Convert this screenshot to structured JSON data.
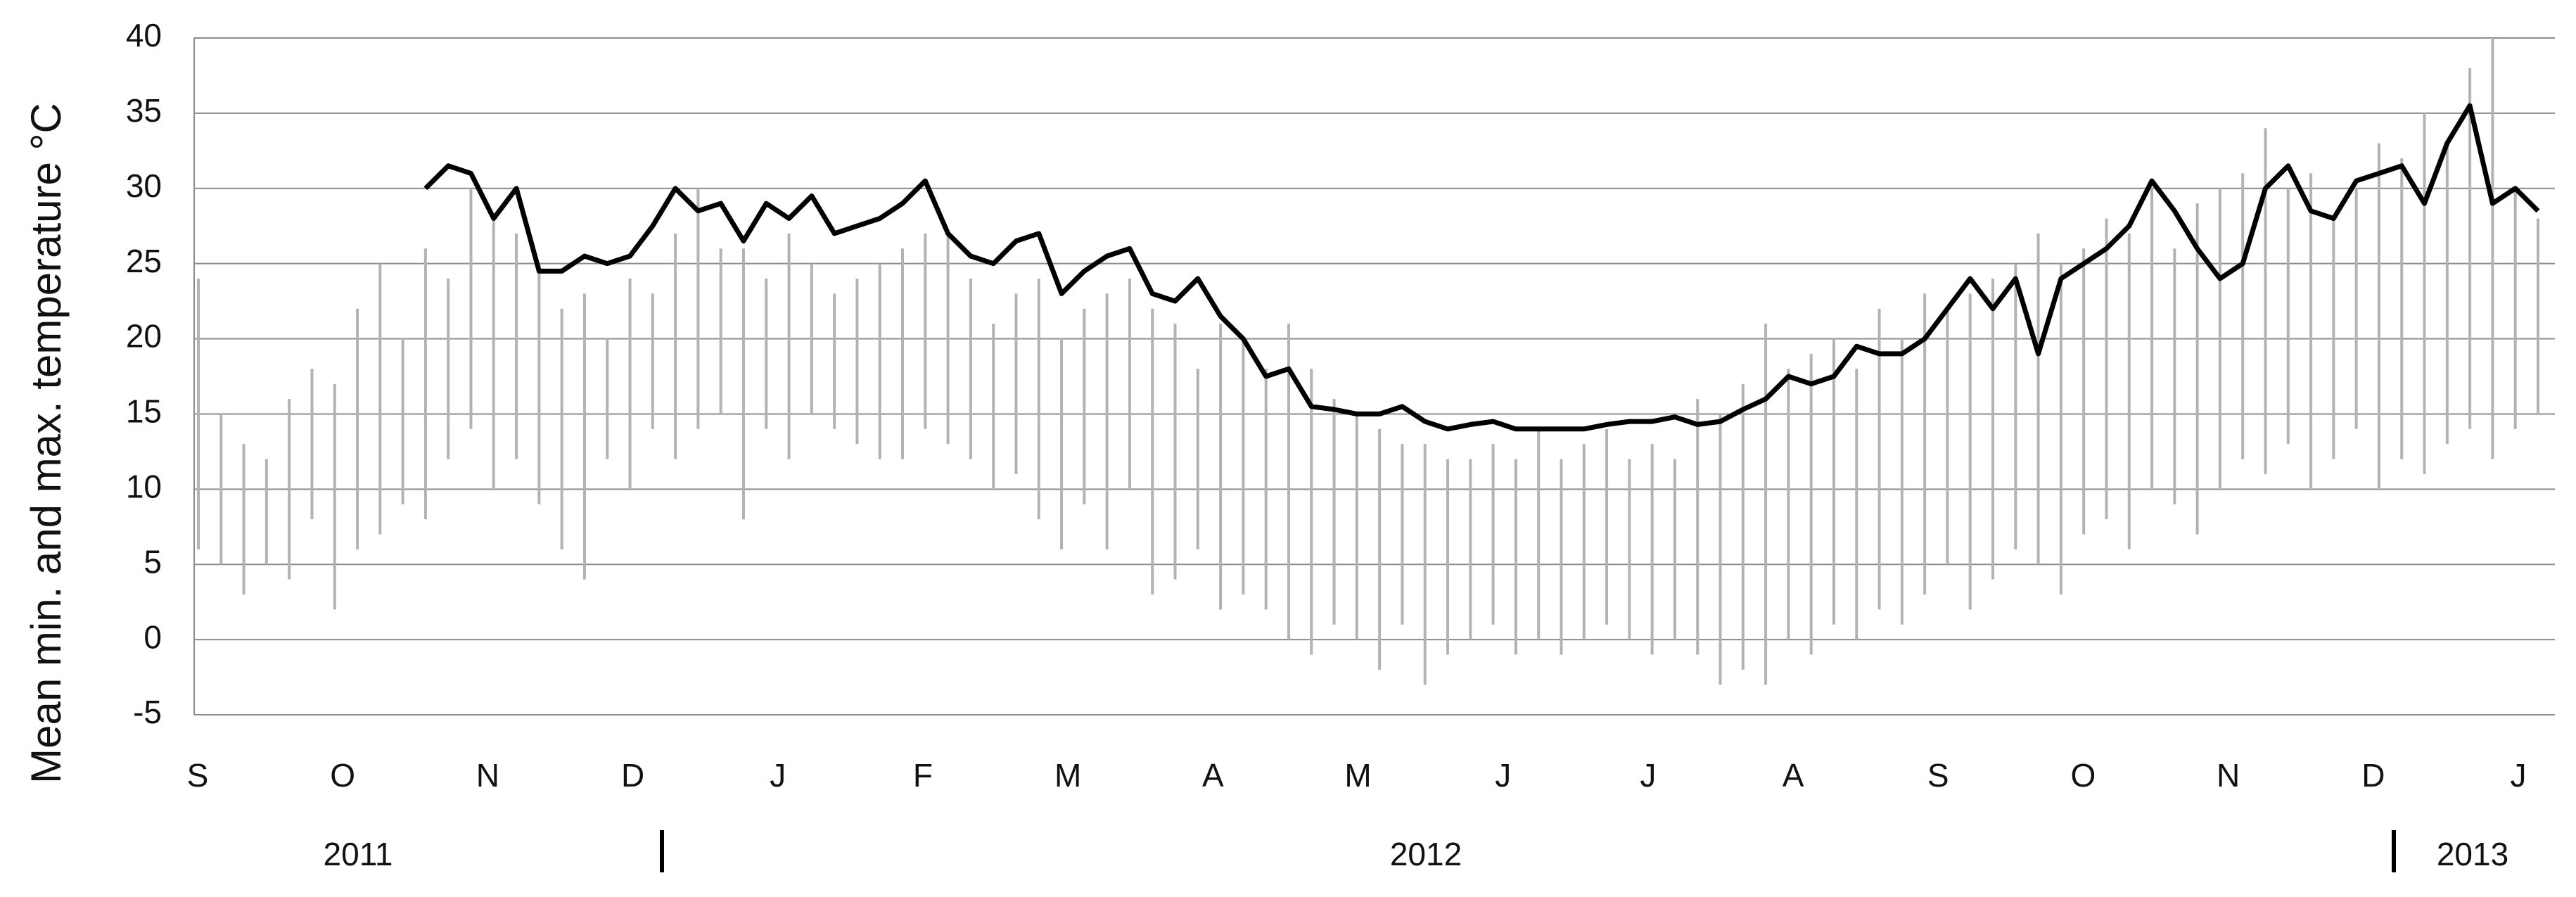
{
  "chart_data": {
    "type": "range_line",
    "y_label": "Mean min. and max. temperature °C",
    "categories": [
      "S",
      "O",
      "N",
      "D",
      "J",
      "F",
      "M",
      "A",
      "M",
      "J",
      "J",
      "A",
      "S",
      "O",
      "N",
      "D",
      "J"
    ],
    "year_labels": [
      "2011",
      "2012",
      "2013"
    ],
    "ylim": [
      -5,
      40
    ],
    "yticks": [
      -5,
      0,
      5,
      10,
      15,
      20,
      25,
      30,
      35,
      40
    ],
    "grid": true,
    "ranges": {
      "color": "#b3b3b3",
      "low": [
        6,
        5,
        3,
        5,
        4,
        8,
        2,
        6,
        7,
        9,
        8,
        12,
        14,
        10,
        12,
        9,
        6,
        4,
        12,
        10,
        14,
        12,
        14,
        15,
        8,
        14,
        12,
        15,
        14,
        13,
        12,
        12,
        14,
        13,
        12,
        10,
        11,
        8,
        6,
        9,
        6,
        10,
        3,
        4,
        6,
        2,
        3,
        2,
        0,
        -1,
        1,
        0,
        -2,
        1,
        -3,
        -1,
        0,
        1,
        -1,
        0,
        -1,
        0,
        1,
        0,
        -1,
        0,
        -1,
        -3,
        -2,
        -3,
        0,
        -1,
        1,
        0,
        2,
        1,
        3,
        5,
        2,
        4,
        6,
        5,
        3,
        7,
        8,
        6,
        10,
        9,
        7,
        10,
        12,
        11,
        13,
        10,
        12,
        14,
        10,
        12,
        11,
        13,
        14,
        12,
        14,
        15
      ],
      "high": [
        24,
        15,
        13,
        12,
        16,
        18,
        17,
        22,
        25,
        20,
        26,
        24,
        30,
        28,
        27,
        25,
        22,
        23,
        20,
        24,
        23,
        27,
        30,
        26,
        26,
        24,
        27,
        25,
        23,
        24,
        25,
        26,
        27,
        27,
        24,
        21,
        23,
        24,
        20,
        22,
        23,
        24,
        22,
        21,
        18,
        21,
        20,
        18,
        21,
        18,
        16,
        15,
        14,
        13,
        13,
        12,
        12,
        13,
        12,
        14,
        12,
        13,
        14,
        12,
        13,
        12,
        16,
        15,
        17,
        21,
        18,
        19,
        20,
        18,
        22,
        20,
        23,
        22,
        23,
        24,
        25,
        27,
        25,
        26,
        28,
        27,
        30,
        26,
        29,
        30,
        31,
        34,
        30,
        31,
        28,
        30,
        33,
        32,
        35,
        33,
        38,
        40,
        30,
        28
      ]
    },
    "line": {
      "color": "#000000",
      "values": [
        null,
        null,
        null,
        null,
        null,
        null,
        null,
        null,
        null,
        null,
        30,
        31.5,
        31,
        28,
        30,
        24.5,
        24.5,
        25.5,
        25,
        25.5,
        27.5,
        30,
        28.5,
        29,
        26.5,
        29,
        28,
        29.5,
        27,
        27.5,
        28,
        29,
        30.5,
        27,
        25.5,
        25,
        26.5,
        27,
        23,
        24.5,
        25.5,
        26,
        23,
        22.5,
        24,
        21.5,
        20,
        17.5,
        18,
        15.5,
        15.3,
        15,
        15,
        15.5,
        14.5,
        14,
        14.3,
        14.5,
        14,
        14,
        14,
        14,
        14.3,
        14.5,
        14.5,
        14.8,
        14.3,
        14.5,
        15.3,
        16,
        17.5,
        17,
        17.5,
        19.5,
        19,
        19,
        20,
        22,
        24,
        22,
        24,
        19,
        24,
        25,
        26,
        27.5,
        30.5,
        28.5,
        26,
        24,
        25,
        30,
        31.5,
        28.5,
        28,
        30.5,
        31,
        31.5,
        29,
        33,
        35.5,
        29,
        30,
        28.5
      ]
    }
  }
}
